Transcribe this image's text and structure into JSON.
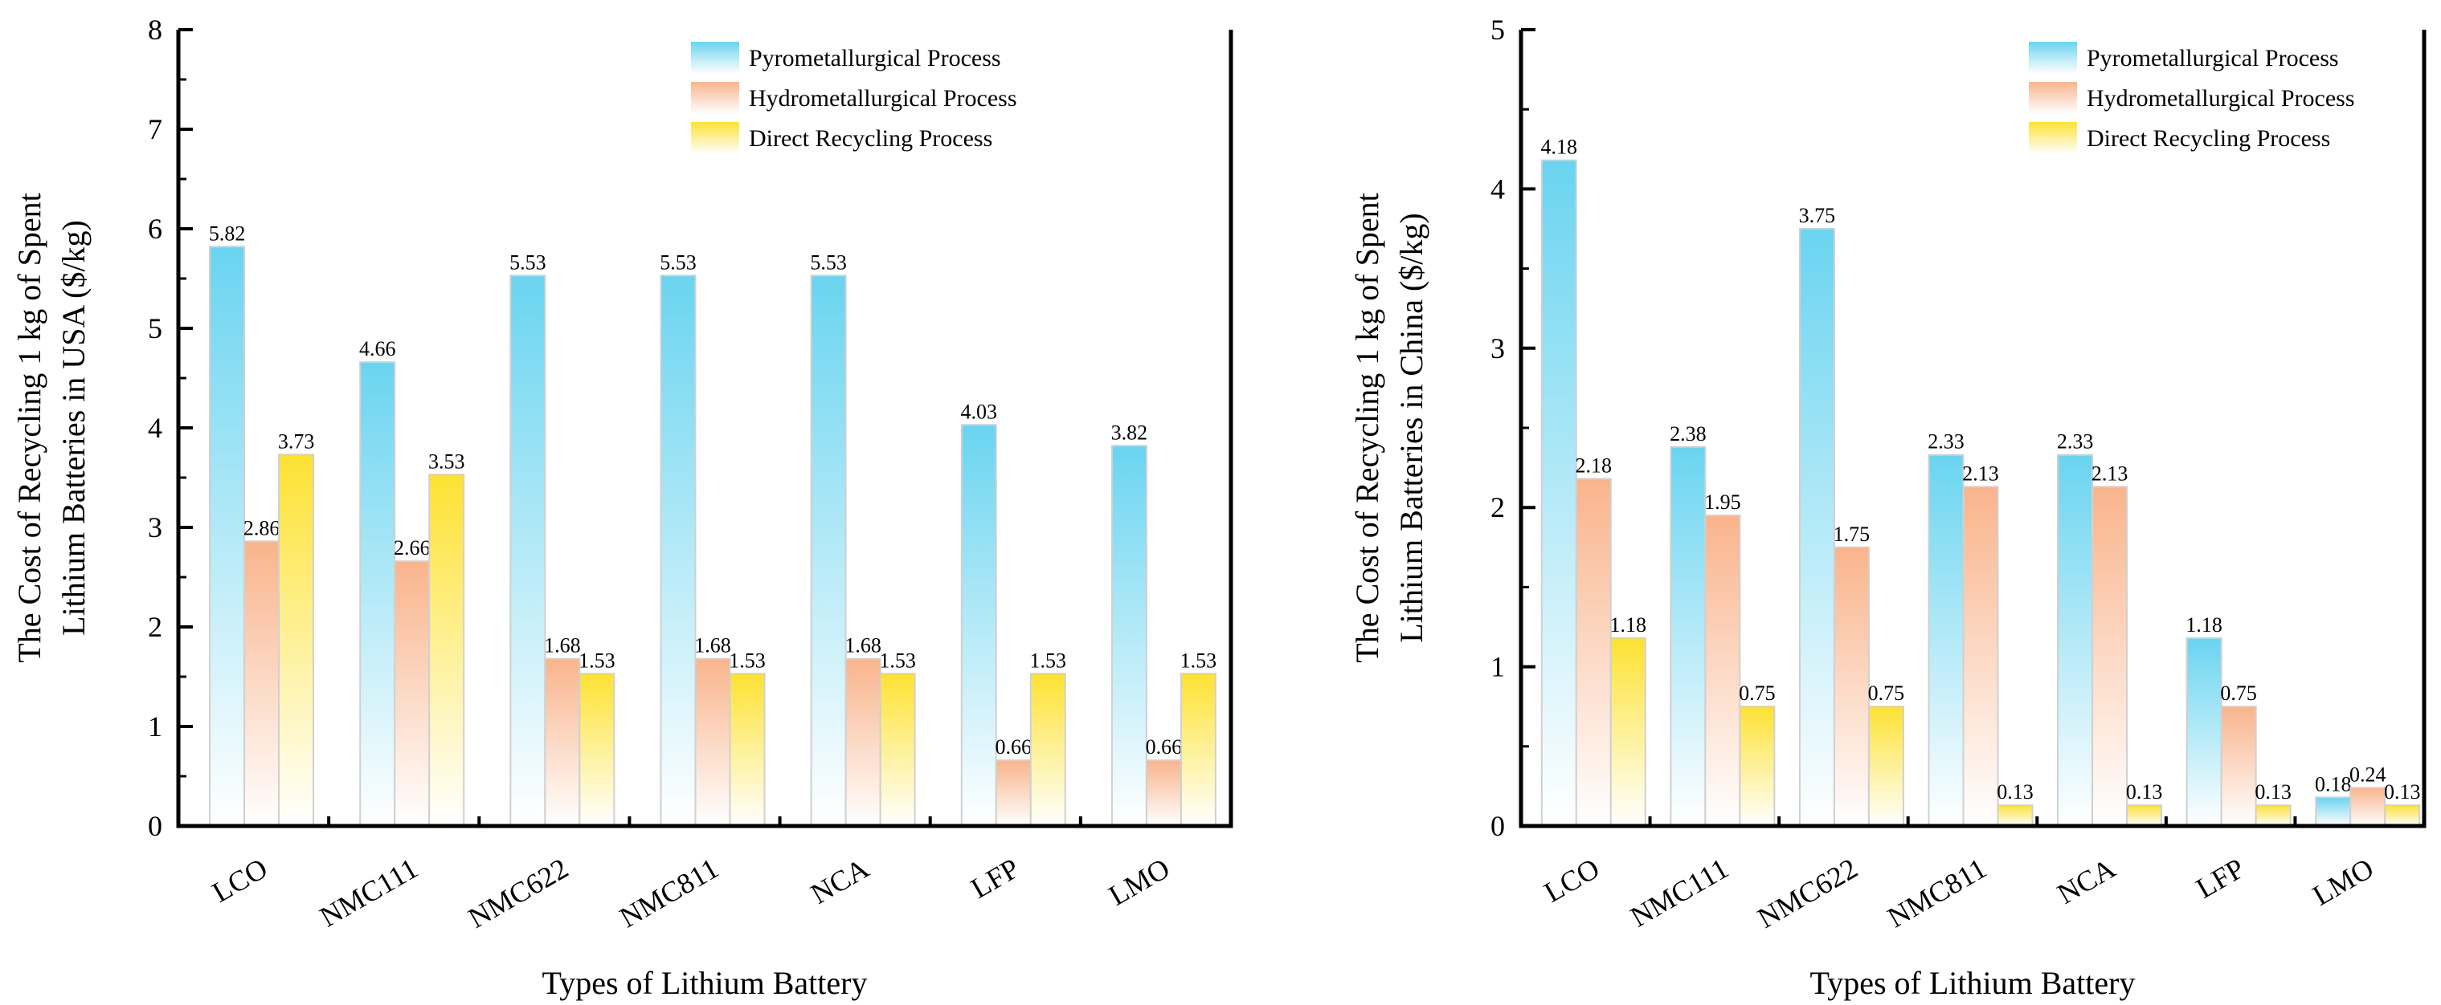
{
  "chart_data": [
    {
      "type": "bar",
      "title": "",
      "xlabel": "Types of Lithium Battery",
      "ylabel": [
        "The Cost of Recycling 1 kg of Spent",
        "Lithium Batteries in USA ($/kg)"
      ],
      "ylim": [
        0,
        8
      ],
      "yticks": [
        "0",
        "1",
        "2",
        "3",
        "4",
        "5",
        "6",
        "7",
        "8"
      ],
      "categories": [
        "LCO",
        "NMC111",
        "NMC622",
        "NMC811",
        "NCA",
        "LFP",
        "LMO"
      ],
      "legend_position": "top-right",
      "series": [
        {
          "name": "Pyrometallurgical Process",
          "color": "#6ad4f0",
          "values": [
            5.82,
            4.66,
            5.53,
            5.53,
            5.53,
            4.03,
            3.82
          ],
          "labels": [
            "5.82",
            "4.66",
            "5.53",
            "5.53",
            "5.53",
            "4.03",
            "3.82"
          ]
        },
        {
          "name": "Hydrometallurgical Process",
          "color": "#f9b48c",
          "values": [
            2.86,
            2.66,
            1.68,
            1.68,
            1.68,
            0.66,
            0.66
          ],
          "labels": [
            "2.86",
            "2.66",
            "1.68",
            "1.68",
            "1.68",
            "0.66",
            "0.66"
          ]
        },
        {
          "name": "Direct Recycling Process",
          "color": "#fde232",
          "values": [
            3.73,
            3.53,
            1.53,
            1.53,
            1.53,
            1.53,
            1.53
          ],
          "labels": [
            "3.73",
            "3.53",
            "1.53",
            "1.53",
            "1.53",
            "1.53",
            "1.53"
          ]
        }
      ]
    },
    {
      "type": "bar",
      "title": "",
      "xlabel": "Types of Lithium Battery",
      "ylabel": [
        "The Cost of Recycling 1 kg of Spent",
        "Lithium Batteries in China  ($/kg)"
      ],
      "ylim": [
        0,
        5
      ],
      "yticks": [
        "0",
        "1",
        "2",
        "3",
        "4",
        "5"
      ],
      "categories": [
        "LCO",
        "NMC111",
        "NMC622",
        "NMC811",
        "NCA",
        "LFP",
        "LMO"
      ],
      "legend_position": "top-right",
      "series": [
        {
          "name": "Pyrometallurgical Process",
          "color": "#6ad4f0",
          "values": [
            4.18,
            2.38,
            3.75,
            2.33,
            2.33,
            1.18,
            0.18
          ],
          "labels": [
            "4.18",
            "2.38",
            "3.75",
            "2.33",
            "2.33",
            "1.18",
            "0.18"
          ]
        },
        {
          "name": "Hydrometallurgical Process",
          "color": "#f9b48c",
          "values": [
            2.18,
            1.95,
            1.75,
            2.13,
            2.13,
            0.75,
            0.24
          ],
          "labels": [
            "2.18",
            "1.95",
            "1.75",
            "2.13",
            "2.13",
            "0.75",
            "0.24"
          ]
        },
        {
          "name": "Direct Recycling Process",
          "color": "#fde232",
          "values": [
            1.18,
            0.75,
            0.75,
            0.13,
            0.13,
            0.13,
            0.13
          ],
          "labels": [
            "1.18",
            "0.75",
            "0.75",
            "0.13",
            "0.13",
            "0.13",
            "0.13"
          ]
        }
      ]
    }
  ]
}
